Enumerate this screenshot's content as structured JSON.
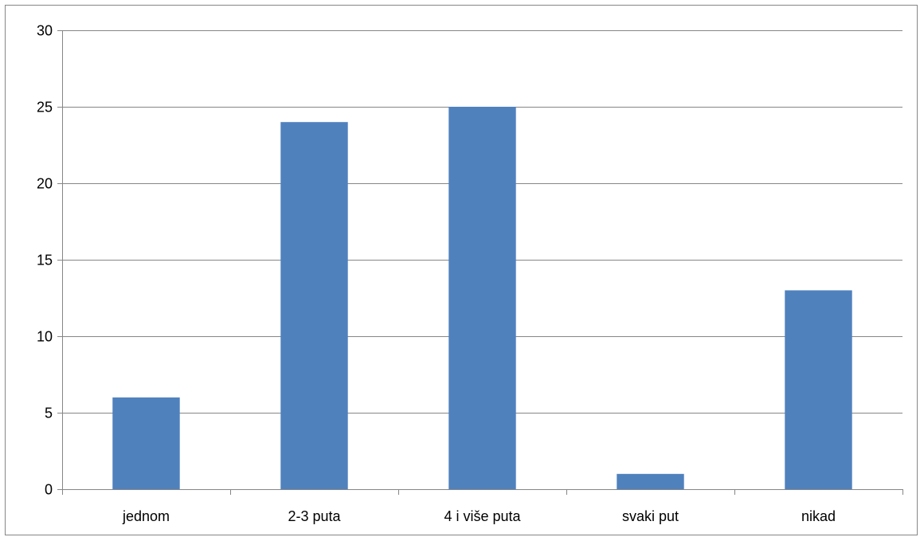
{
  "chart_data": {
    "type": "bar",
    "categories": [
      "jednom",
      "2-3 puta",
      "4 i više puta",
      "svaki put",
      "nikad"
    ],
    "values": [
      6,
      24,
      25,
      1,
      13
    ],
    "title": "",
    "xlabel": "",
    "ylabel": "",
    "ylim": [
      0,
      30
    ],
    "yticks": [
      0,
      5,
      10,
      15,
      20,
      25,
      30
    ],
    "grid": true,
    "legend": "none",
    "bar_color": "#4F81BD",
    "gridline_color": "#868686"
  }
}
